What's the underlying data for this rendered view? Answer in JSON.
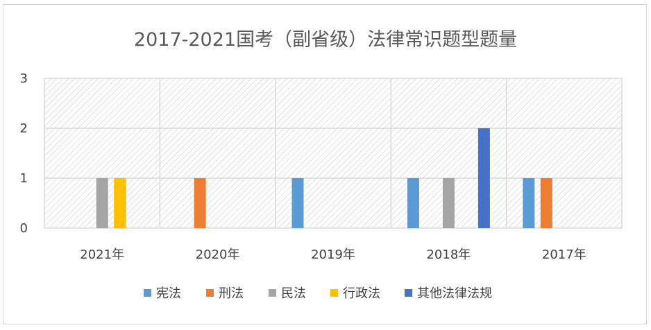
{
  "chart_data": {
    "type": "bar",
    "title": "2017-2021国考（副省级）法律常识题型题量",
    "categories": [
      "2021年",
      "2020年",
      "2019年",
      "2018年",
      "2017年"
    ],
    "series": [
      {
        "name": "宪法",
        "color": "#5B9BD5",
        "values": [
          0,
          0,
          1,
          1,
          1
        ]
      },
      {
        "name": "刑法",
        "color": "#ED7D31",
        "values": [
          0,
          1,
          0,
          0,
          1
        ]
      },
      {
        "name": "民法",
        "color": "#A5A5A5",
        "values": [
          1,
          0,
          0,
          1,
          0
        ]
      },
      {
        "name": "行政法",
        "color": "#FFC000",
        "values": [
          1,
          0,
          0,
          0,
          0
        ]
      },
      {
        "name": "其他法律法规",
        "color": "#4472C4",
        "values": [
          0,
          0,
          0,
          2,
          0
        ]
      }
    ],
    "yticks": [
      0,
      1,
      2,
      3
    ],
    "ylim": [
      0,
      3
    ],
    "grid": true,
    "legend_position": "bottom",
    "plot_background": "diagonal hatch"
  }
}
